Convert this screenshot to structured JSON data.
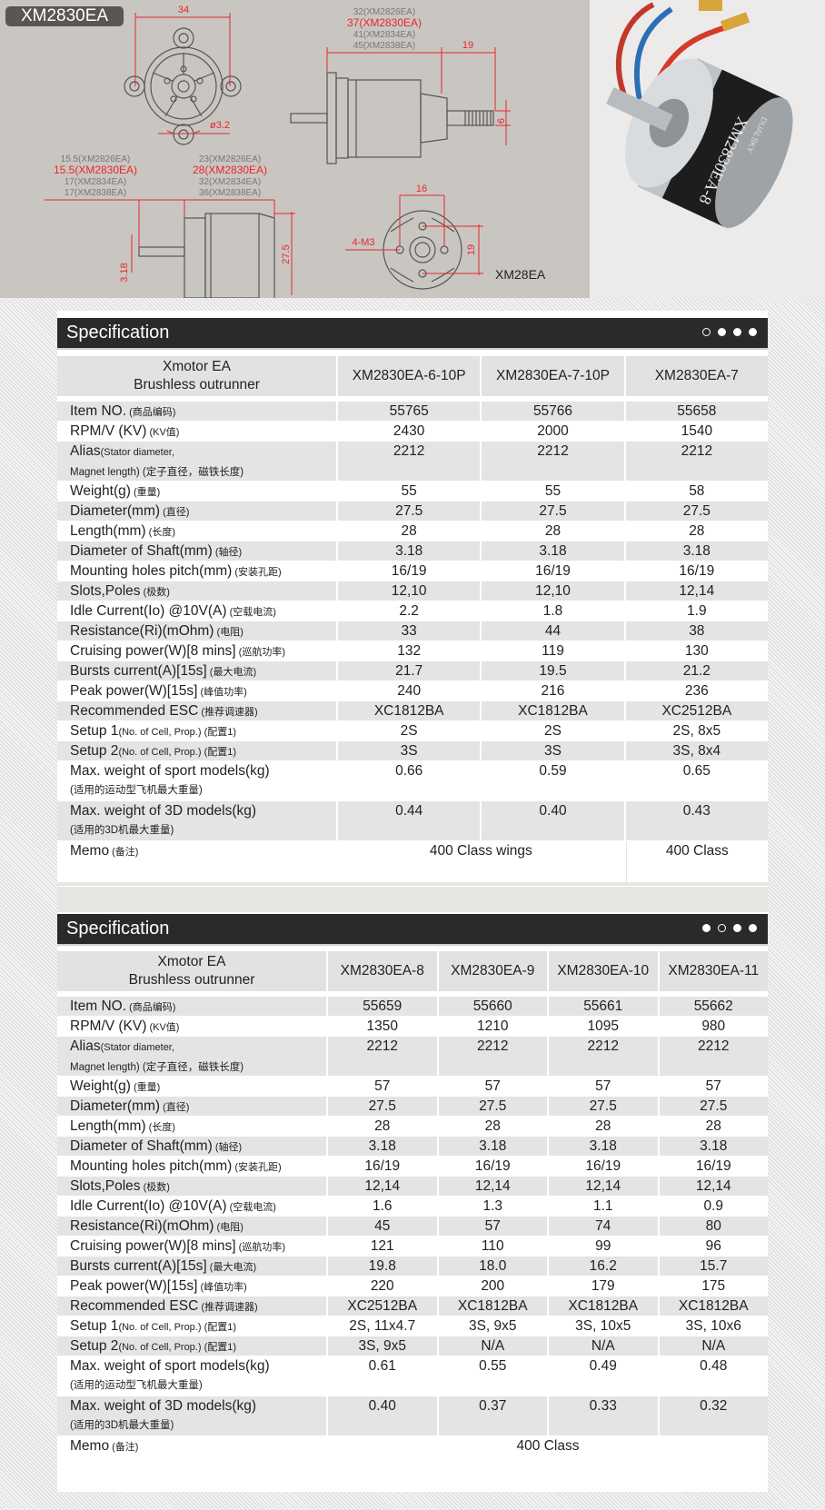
{
  "banner": {
    "model_badge": "XM2830EA",
    "dims": {
      "front_width": "34",
      "hole_dia": "ø3.2",
      "length_stack": [
        "32(XM2826EA)",
        "37(XM2830EA)",
        "41(XM2834EA)",
        "45(XM2838EA)"
      ],
      "shaft_len": "19",
      "shaft_dia_thread": "6",
      "left_stack": [
        "15.5(XM2826EA)",
        "15.5(XM2830EA)",
        "17(XM2834EA)",
        "17(XM2838EA)"
      ],
      "right_stack": [
        "23(XM2826EA)",
        "28(XM2830EA)",
        "32(XM2834EA)",
        "36(XM2838EA)"
      ],
      "body_dia": "27.5",
      "shaft_dia": "3.18",
      "hole_spacing_h": "16",
      "hole_spacing_v": "19",
      "holes": "4-M3",
      "series_label": "XM28EA"
    },
    "highlight_color": "#e8262b",
    "dim_color": "#e8262b"
  },
  "photo": {
    "label_text": "XM2830EA-8",
    "brand_text": "DUALSKY"
  },
  "tables": [
    {
      "title": "Specification",
      "dots": [
        "off",
        "on",
        "on",
        "on"
      ],
      "header_label": [
        "Xmotor EA",
        "Brushless outrunner"
      ],
      "columns": [
        "XM2830EA-6-10P",
        "XM2830EA-7-10P",
        "XM2830EA-7"
      ],
      "rows": [
        {
          "label": "Item NO.",
          "note": " (商品编码)",
          "values": [
            "55765",
            "55766",
            "55658"
          ]
        },
        {
          "label": "RPM/V (KV)",
          "note": " (KV值)",
          "values": [
            "2430",
            "2000",
            "1540"
          ]
        },
        {
          "label": "Alias",
          "note": "(Stator diameter,",
          "line2": "Magnet length) (定子直径，磁铁长度)",
          "values": [
            "2212",
            "2212",
            "2212"
          ]
        },
        {
          "label": "Weight(g)",
          "note": " (重量)",
          "values": [
            "55",
            "55",
            "58"
          ]
        },
        {
          "label": "Diameter(mm)",
          "note": " (直径)",
          "values": [
            "27.5",
            "27.5",
            "27.5"
          ]
        },
        {
          "label": "Length(mm)",
          "note": " (长度)",
          "values": [
            "28",
            "28",
            "28"
          ]
        },
        {
          "label": "Diameter of Shaft(mm)",
          "note": " (轴径)",
          "values": [
            "3.18",
            "3.18",
            "3.18"
          ]
        },
        {
          "label": "Mounting holes pitch(mm)",
          "note": " (安装孔距)",
          "values": [
            "16/19",
            "16/19",
            "16/19"
          ]
        },
        {
          "label": "Slots,Poles",
          "note": " (极数)",
          "values": [
            "12,10",
            "12,10",
            "12,14"
          ]
        },
        {
          "label": "Idle Current(Io) @10V(A)",
          "note": " (空载电流)",
          "values": [
            "2.2",
            "1.8",
            "1.9"
          ]
        },
        {
          "label": "Resistance(Ri)(mOhm)",
          "note": " (电阻)",
          "values": [
            "33",
            "44",
            "38"
          ]
        },
        {
          "label": "Cruising power(W)[8 mins]",
          "note": " (巡航功率)",
          "values": [
            "132",
            "119",
            "130"
          ]
        },
        {
          "label": "Bursts current(A)[15s]",
          "note": " (最大电流)",
          "values": [
            "21.7",
            "19.5",
            "21.2"
          ]
        },
        {
          "label": "Peak power(W)[15s]",
          "note": " (峰值功率)",
          "values": [
            "240",
            "216",
            "236"
          ]
        },
        {
          "label": "Recommended ESC",
          "note": " (推荐调速器)",
          "values": [
            "XC1812BA",
            "XC1812BA",
            "XC2512BA"
          ]
        },
        {
          "label": "Setup 1",
          "note": "(No. of Cell, Prop.) (配置1)",
          "values": [
            "2S",
            "2S",
            "2S, 8x5"
          ]
        },
        {
          "label": "Setup 2",
          "note": "(No. of Cell, Prop.) (配置1)",
          "values": [
            "3S",
            "3S",
            "3S, 8x4"
          ]
        },
        {
          "label": "Max. weight of sport models(kg)",
          "note": "",
          "line2": " (适用的运动型飞机最大重量)",
          "values": [
            "0.66",
            "0.59",
            "0.65"
          ]
        },
        {
          "label": "Max. weight of 3D models(kg)",
          "note": "",
          "line2": "(适用的3D机最大重量)",
          "values": [
            "0.44",
            "0.40",
            "0.43"
          ]
        }
      ],
      "memo": {
        "label": "Memo",
        "note": " (备注)",
        "cells": [
          {
            "text": "400 Class wings",
            "span": 2
          },
          {
            "text": "400 Class",
            "span": 1
          }
        ]
      }
    },
    {
      "title": "Specification",
      "dots": [
        "on",
        "off",
        "on",
        "on"
      ],
      "header_label": [
        "Xmotor EA",
        "Brushless outrunner"
      ],
      "columns": [
        "XM2830EA-8",
        "XM2830EA-9",
        "XM2830EA-10",
        "XM2830EA-11"
      ],
      "rows": [
        {
          "label": "Item NO.",
          "note": " (商品编码)",
          "values": [
            "55659",
            "55660",
            "55661",
            "55662"
          ]
        },
        {
          "label": "RPM/V (KV)",
          "note": " (KV值)",
          "values": [
            "1350",
            "1210",
            "1095",
            "980"
          ]
        },
        {
          "label": "Alias",
          "note": "(Stator diameter,",
          "line2": "Magnet length) (定子直径，磁铁长度)",
          "values": [
            "2212",
            "2212",
            "2212",
            "2212"
          ]
        },
        {
          "label": "Weight(g)",
          "note": " (重量)",
          "values": [
            "57",
            "57",
            "57",
            "57"
          ]
        },
        {
          "label": "Diameter(mm)",
          "note": " (直径)",
          "values": [
            "27.5",
            "27.5",
            "27.5",
            "27.5"
          ]
        },
        {
          "label": "Length(mm)",
          "note": " (长度)",
          "values": [
            "28",
            "28",
            "28",
            "28"
          ]
        },
        {
          "label": "Diameter of Shaft(mm)",
          "note": " (轴径)",
          "values": [
            "3.18",
            "3.18",
            "3.18",
            "3.18"
          ]
        },
        {
          "label": "Mounting holes pitch(mm)",
          "note": " (安装孔距)",
          "values": [
            "16/19",
            "16/19",
            "16/19",
            "16/19"
          ]
        },
        {
          "label": "Slots,Poles",
          "note": " (极数)",
          "values": [
            "12,14",
            "12,14",
            "12,14",
            "12,14"
          ]
        },
        {
          "label": "Idle Current(Io) @10V(A)",
          "note": " (空载电流)",
          "values": [
            "1.6",
            "1.3",
            "1.1",
            "0.9"
          ]
        },
        {
          "label": "Resistance(Ri)(mOhm)",
          "note": " (电阻)",
          "values": [
            "45",
            "57",
            "74",
            "80"
          ]
        },
        {
          "label": "Cruising power(W)[8 mins]",
          "note": " (巡航功率)",
          "values": [
            "121",
            "110",
            "99",
            "96"
          ]
        },
        {
          "label": "Bursts current(A)[15s]",
          "note": " (最大电流)",
          "values": [
            "19.8",
            "18.0",
            "16.2",
            "15.7"
          ]
        },
        {
          "label": "Peak power(W)[15s]",
          "note": " (峰值功率)",
          "values": [
            "220",
            "200",
            "179",
            "175"
          ]
        },
        {
          "label": "Recommended ESC",
          "note": " (推荐调速器)",
          "values": [
            "XC2512BA",
            "XC1812BA",
            "XC1812BA",
            "XC1812BA"
          ]
        },
        {
          "label": "Setup 1",
          "note": "(No. of Cell, Prop.) (配置1)",
          "values": [
            "2S, 11x4.7",
            "3S, 9x5",
            "3S, 10x5",
            "3S, 10x6"
          ]
        },
        {
          "label": "Setup 2",
          "note": "(No. of Cell, Prop.) (配置1)",
          "values": [
            "3S, 9x5",
            "N/A",
            "N/A",
            "N/A"
          ]
        },
        {
          "label": "Max. weight of sport models(kg)",
          "note": "",
          "line2": " (适用的运动型飞机最大重量)",
          "values": [
            "0.61",
            "0.55",
            "0.49",
            "0.48"
          ]
        },
        {
          "label": "Max. weight of 3D models(kg)",
          "note": "",
          "line2": "(适用的3D机最大重量)",
          "values": [
            "0.40",
            "0.37",
            "0.33",
            "0.32"
          ]
        }
      ],
      "memo": {
        "label": "Memo",
        "note": " (备注)",
        "cells": [
          {
            "text": "400 Class",
            "span": 4
          }
        ]
      }
    }
  ]
}
